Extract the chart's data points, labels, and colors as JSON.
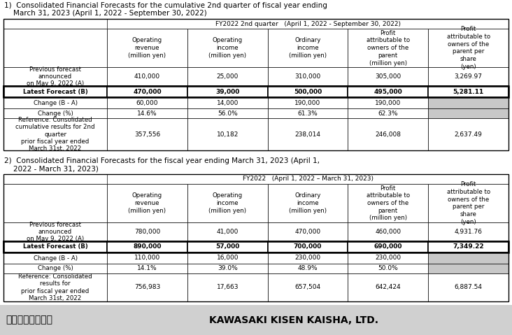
{
  "title1_line1": "1)  Consolidated Financial Forecasts for the cumulative 2nd quarter of fiscal year ending",
  "title1_line2": "    March 31, 2023 (April 1, 2022 - September 30, 2022)",
  "title2_line1": "2)  Consolidated Financial Forecasts for the fiscal year ending March 31, 2023 (April 1,",
  "title2_line2": "    2022 - March 31, 2023)",
  "footer_left": "川崎汽船株式會社",
  "footer_right": "KAWASAKI KISEN KAISHA, LTD.",
  "table1_header_main": "FY2022 2nd quarter   (April 1, 2022 - September 30, 2022)",
  "table2_header_main": "FY2022   (April 1, 2022 – March 31, 2023)",
  "col_headers": [
    "Operating\nrevenue\n(million yen)",
    "Operating\nincome\n(million yen)",
    "Ordinary\nincome\n(million yen)",
    "Profit\nattributable to\nowners of the\nparent\n(million yen)",
    "Profit\nattributable to\nowners of the\nparent per\nshare\n(yen)"
  ],
  "row_labels_t1": [
    "Previous forecast\nannounced\non May 9, 2022 (A)",
    "Latest Forecast (B)",
    "Change (B - A)",
    "Change (%)",
    "Reference: Consolidated\ncumulative results for 2nd\nquarter\nprior fiscal year ended\nMarch 31st, 2022"
  ],
  "row_labels_t2": [
    "Previous forecast\nannounced\non May 9, 2022 (A)",
    "Latest Forecast (B)",
    "Change (B - A)",
    "Change (%)",
    "Reference: Consolidated\nresults for\nprior fiscal year ended\nMarch 31st, 2022"
  ],
  "table1_data": [
    [
      "410,000",
      "25,000",
      "310,000",
      "305,000",
      "3,269.97"
    ],
    [
      "470,000",
      "39,000",
      "500,000",
      "495,000",
      "5,281.11"
    ],
    [
      "60,000",
      "14,000",
      "190,000",
      "190,000",
      ""
    ],
    [
      "14.6%",
      "56.0%",
      "61.3%",
      "62.3%",
      ""
    ],
    [
      "357,556",
      "10,182",
      "238,014",
      "246,008",
      "2,637.49"
    ]
  ],
  "table2_data": [
    [
      "780,000",
      "41,000",
      "470,000",
      "460,000",
      "4,931.76"
    ],
    [
      "890,000",
      "57,000",
      "700,000",
      "690,000",
      "7,349.22"
    ],
    [
      "110,000",
      "16,000",
      "230,000",
      "230,000",
      ""
    ],
    [
      "14.1%",
      "39.0%",
      "48.9%",
      "50.0%",
      ""
    ],
    [
      "756,983",
      "17,663",
      "657,504",
      "642,424",
      "6,887.54"
    ]
  ],
  "bg_color": "#ffffff",
  "bold_row_indices": [
    1
  ],
  "gray_color": "#c8c8c8",
  "border_color": "#000000",
  "text_color": "#000000",
  "font_size_title": 7.5,
  "font_size_table": 6.5,
  "font_size_footer_jp": 10,
  "font_size_footer_en": 10
}
